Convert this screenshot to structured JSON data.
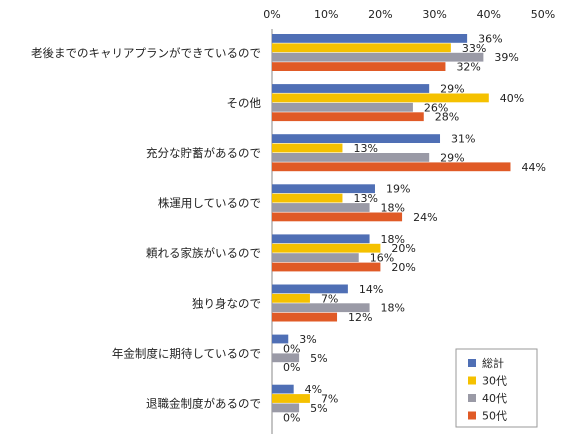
{
  "chart_data": {
    "type": "bar",
    "orientation": "horizontal",
    "categories": [
      "老後までのキャリアプランができているので",
      "その他",
      "充分な貯蓄があるので",
      "株運用しているので",
      "頼れる家族がいるので",
      "独り身なので",
      "年金制度に期待しているので",
      "退職金制度があるので"
    ],
    "series": [
      {
        "name": "総計",
        "color": "#4f6fb5",
        "values": [
          36,
          29,
          31,
          19,
          18,
          14,
          3,
          4
        ]
      },
      {
        "name": "30代",
        "color": "#f5c100",
        "values": [
          33,
          40,
          13,
          13,
          20,
          7,
          0,
          7
        ]
      },
      {
        "name": "40代",
        "color": "#9a9aa6",
        "values": [
          39,
          26,
          29,
          18,
          16,
          18,
          5,
          5
        ]
      },
      {
        "name": "50代",
        "color": "#e05a26",
        "values": [
          32,
          28,
          44,
          24,
          20,
          12,
          0,
          0
        ]
      }
    ],
    "value_suffix": "%",
    "xlim": [
      0,
      50
    ],
    "xticks": [
      "0%",
      "10%",
      "20%",
      "30%",
      "40%",
      "50%"
    ],
    "xaxis_position": "top",
    "grid": false,
    "legend_position": "bottom-right"
  }
}
